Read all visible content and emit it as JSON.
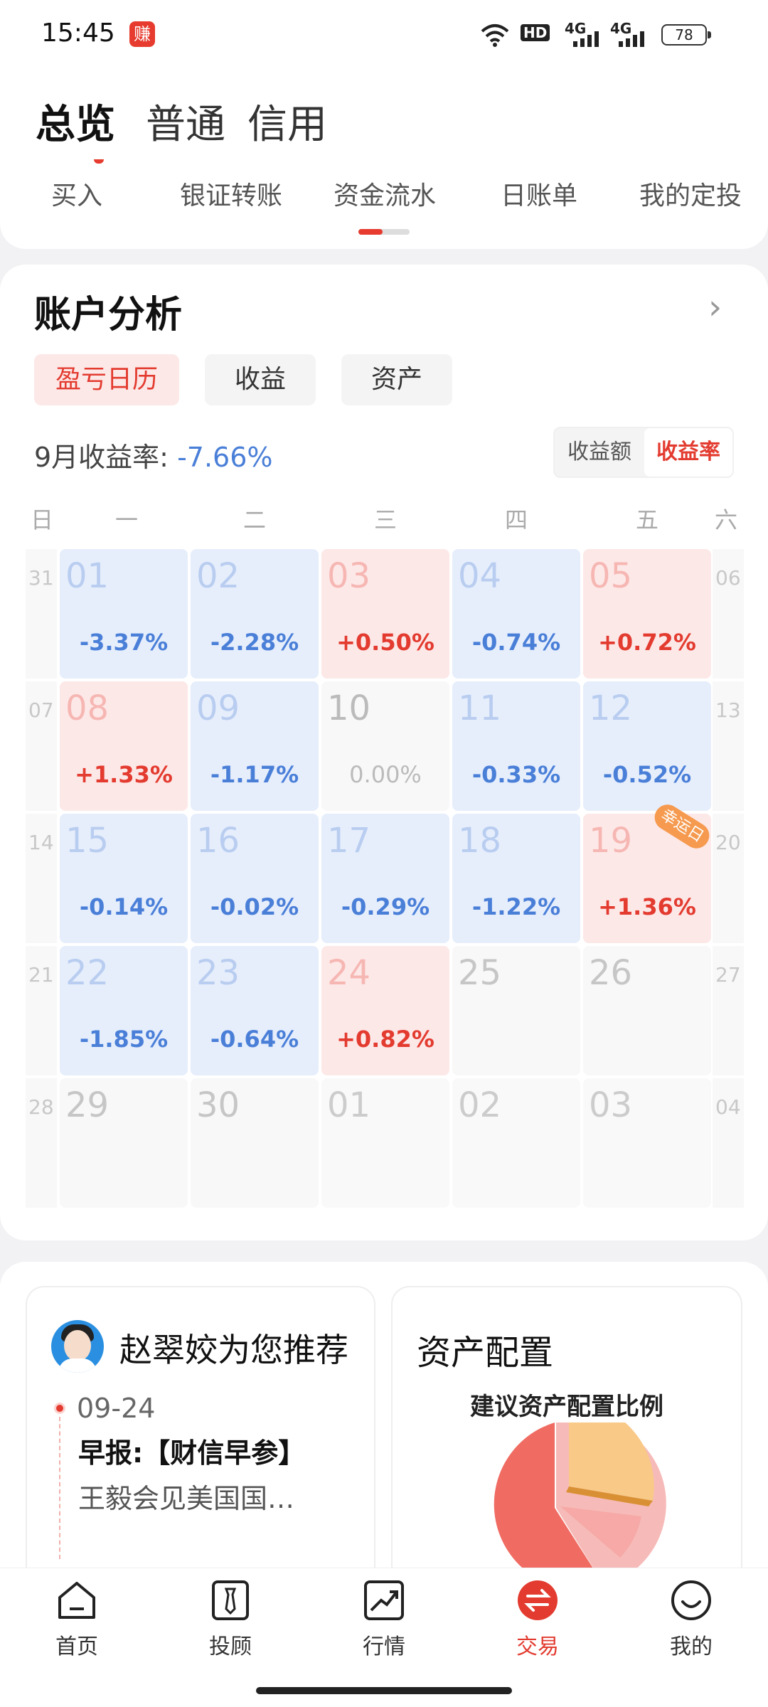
{
  "status": {
    "time": "15:45",
    "badge": "赚",
    "hd": "HD",
    "net1": "4G",
    "net2": "4G",
    "battery": "78"
  },
  "top_tabs": [
    "总览",
    "普通",
    "信用"
  ],
  "functions": [
    "买入",
    "银证转账",
    "资金流水",
    "日账单",
    "我的定投"
  ],
  "analysis": {
    "title": "账户分析",
    "chips": [
      "盈亏日历",
      "收益",
      "资产"
    ],
    "rate_label": "9月收益率:",
    "rate_value": "-7.66%",
    "toggle": [
      "收益额",
      "收益率"
    ],
    "weekdays": [
      "日",
      "一",
      "二",
      "三",
      "四",
      "五",
      "六"
    ],
    "lucky": "幸运日",
    "sides": [
      [
        "31",
        "06"
      ],
      [
        "07",
        "13"
      ],
      [
        "14",
        "20"
      ],
      [
        "21",
        "27"
      ],
      [
        "28",
        "04"
      ]
    ],
    "rows": [
      [
        {
          "d": "01",
          "p": "-3.37%",
          "t": "blue"
        },
        {
          "d": "02",
          "p": "-2.28%",
          "t": "blue"
        },
        {
          "d": "03",
          "p": "+0.50%",
          "t": "red"
        },
        {
          "d": "04",
          "p": "-0.74%",
          "t": "blue"
        },
        {
          "d": "05",
          "p": "+0.72%",
          "t": "red"
        }
      ],
      [
        {
          "d": "08",
          "p": "+1.33%",
          "t": "red"
        },
        {
          "d": "09",
          "p": "-1.17%",
          "t": "blue"
        },
        {
          "d": "10",
          "p": "0.00%",
          "t": "zero"
        },
        {
          "d": "11",
          "p": "-0.33%",
          "t": "blue"
        },
        {
          "d": "12",
          "p": "-0.52%",
          "t": "blue"
        }
      ],
      [
        {
          "d": "15",
          "p": "-0.14%",
          "t": "blue"
        },
        {
          "d": "16",
          "p": "-0.02%",
          "t": "blue"
        },
        {
          "d": "17",
          "p": "-0.29%",
          "t": "blue"
        },
        {
          "d": "18",
          "p": "-1.22%",
          "t": "blue"
        },
        {
          "d": "19",
          "p": "+1.36%",
          "t": "red"
        }
      ],
      [
        {
          "d": "22",
          "p": "-1.85%",
          "t": "blue"
        },
        {
          "d": "23",
          "p": "-0.64%",
          "t": "blue"
        },
        {
          "d": "24",
          "p": "+0.82%",
          "t": "red"
        },
        {
          "d": "25",
          "p": "",
          "t": "empty"
        },
        {
          "d": "26",
          "p": "",
          "t": "empty"
        }
      ],
      [
        {
          "d": "29",
          "p": "",
          "t": "empty"
        },
        {
          "d": "30",
          "p": "",
          "t": "empty"
        },
        {
          "d": "01",
          "p": "",
          "t": "fade"
        },
        {
          "d": "02",
          "p": "",
          "t": "fade"
        },
        {
          "d": "03",
          "p": "",
          "t": "fade"
        }
      ]
    ]
  },
  "recommend": {
    "title": "赵翠姣为您推荐",
    "date": "09-24",
    "label": "早报:",
    "tag": "【财信早参】",
    "text": "王毅会见美国国…"
  },
  "asset_config": {
    "title": "资产配置",
    "subtitle": "建议资产配置比例"
  },
  "nav": [
    {
      "label": "首页",
      "icon": "home-icon"
    },
    {
      "label": "投顾",
      "icon": "advisor-icon"
    },
    {
      "label": "行情",
      "icon": "market-icon"
    },
    {
      "label": "交易",
      "icon": "trade-icon"
    },
    {
      "label": "我的",
      "icon": "profile-icon"
    }
  ],
  "colors": {
    "red": "#e33b2f",
    "blue": "#4a7fd8",
    "red_bg": "#fde8e8",
    "blue_bg": "#e6eefc"
  }
}
